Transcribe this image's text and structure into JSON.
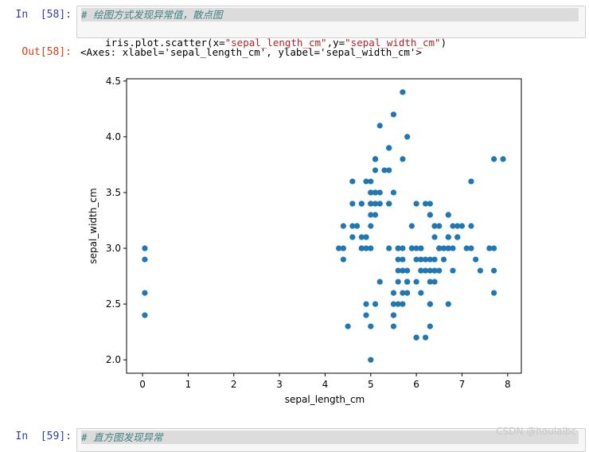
{
  "cell58": {
    "in_prompt": "In  [58]:",
    "comment": "# 绘图方式发现异常值，散点图",
    "code_prefix": "iris.plot.scatter(x=",
    "code_str1": "\"sepal_length_cm\"",
    "code_mid": ",y=",
    "code_str2": "\"sepal_width_cm\"",
    "code_suffix": ")",
    "out_prompt": "Out[58]:",
    "output_text": "<Axes: xlabel='sepal_length_cm', ylabel='sepal_width_cm'>"
  },
  "cell59": {
    "in_prompt": "In  [59]:",
    "comment": "# 直方图发现异常"
  },
  "watermark": "CSDN @houlaibc",
  "colors": {
    "marker": "#1f77b4"
  },
  "chart_data": {
    "type": "scatter",
    "title": "",
    "xlabel": "sepal_length_cm",
    "ylabel": "sepal_width_cm",
    "xlim": [
      -0.35,
      8.3
    ],
    "ylim": [
      1.88,
      4.52
    ],
    "xticks": [
      0,
      1,
      2,
      3,
      4,
      5,
      6,
      7,
      8
    ],
    "yticks": [
      2.0,
      2.5,
      3.0,
      3.5,
      4.0,
      4.5
    ],
    "xtick_labels": [
      "0",
      "1",
      "2",
      "3",
      "4",
      "5",
      "6",
      "7",
      "8"
    ],
    "ytick_labels": [
      "2.0",
      "2.5",
      "3.0",
      "3.5",
      "4.0",
      "4.5"
    ],
    "grid": false,
    "points": [
      [
        0.05,
        3.0
      ],
      [
        0.05,
        2.9
      ],
      [
        0.05,
        2.6
      ],
      [
        0.05,
        2.4
      ],
      [
        5.1,
        3.5
      ],
      [
        4.9,
        3.0
      ],
      [
        4.7,
        3.2
      ],
      [
        4.6,
        3.1
      ],
      [
        5.0,
        3.6
      ],
      [
        5.4,
        3.9
      ],
      [
        4.6,
        3.4
      ],
      [
        5.0,
        3.4
      ],
      [
        4.4,
        2.9
      ],
      [
        4.9,
        3.1
      ],
      [
        5.4,
        3.7
      ],
      [
        4.8,
        3.4
      ],
      [
        4.8,
        3.0
      ],
      [
        4.3,
        3.0
      ],
      [
        5.8,
        4.0
      ],
      [
        5.7,
        4.4
      ],
      [
        5.4,
        3.9
      ],
      [
        5.1,
        3.5
      ],
      [
        5.7,
        3.8
      ],
      [
        5.1,
        3.8
      ],
      [
        5.4,
        3.4
      ],
      [
        5.1,
        3.7
      ],
      [
        4.6,
        3.6
      ],
      [
        5.1,
        3.3
      ],
      [
        4.8,
        3.4
      ],
      [
        5.0,
        3.0
      ],
      [
        5.0,
        3.4
      ],
      [
        5.2,
        3.5
      ],
      [
        5.2,
        3.4
      ],
      [
        4.7,
        3.2
      ],
      [
        4.8,
        3.1
      ],
      [
        5.4,
        3.4
      ],
      [
        5.2,
        4.1
      ],
      [
        5.5,
        4.2
      ],
      [
        4.9,
        3.1
      ],
      [
        5.0,
        3.2
      ],
      [
        5.5,
        3.5
      ],
      [
        4.9,
        3.6
      ],
      [
        4.4,
        3.0
      ],
      [
        5.1,
        3.4
      ],
      [
        5.0,
        3.5
      ],
      [
        4.5,
        2.3
      ],
      [
        4.4,
        3.2
      ],
      [
        5.0,
        3.5
      ],
      [
        5.1,
        3.8
      ],
      [
        4.8,
        3.0
      ],
      [
        5.1,
        3.8
      ],
      [
        4.6,
        3.2
      ],
      [
        5.3,
        3.7
      ],
      [
        5.0,
        3.3
      ],
      [
        7.0,
        3.2
      ],
      [
        6.4,
        3.2
      ],
      [
        6.9,
        3.1
      ],
      [
        5.5,
        2.3
      ],
      [
        6.5,
        2.8
      ],
      [
        5.7,
        2.8
      ],
      [
        6.3,
        3.3
      ],
      [
        4.9,
        2.4
      ],
      [
        6.6,
        2.9
      ],
      [
        5.2,
        2.7
      ],
      [
        5.0,
        2.0
      ],
      [
        5.9,
        3.0
      ],
      [
        6.0,
        2.2
      ],
      [
        6.1,
        2.9
      ],
      [
        5.6,
        2.9
      ],
      [
        6.7,
        3.1
      ],
      [
        5.6,
        3.0
      ],
      [
        5.8,
        2.7
      ],
      [
        6.2,
        2.2
      ],
      [
        5.6,
        2.5
      ],
      [
        5.9,
        3.2
      ],
      [
        6.1,
        2.8
      ],
      [
        6.3,
        2.5
      ],
      [
        6.1,
        2.8
      ],
      [
        6.4,
        2.9
      ],
      [
        6.6,
        3.0
      ],
      [
        6.8,
        2.8
      ],
      [
        6.7,
        3.0
      ],
      [
        6.0,
        2.9
      ],
      [
        5.7,
        2.6
      ],
      [
        5.5,
        2.4
      ],
      [
        5.5,
        2.4
      ],
      [
        5.8,
        2.7
      ],
      [
        6.0,
        2.7
      ],
      [
        5.4,
        3.0
      ],
      [
        6.0,
        3.4
      ],
      [
        6.7,
        3.1
      ],
      [
        6.3,
        2.3
      ],
      [
        5.6,
        3.0
      ],
      [
        5.5,
        2.5
      ],
      [
        5.5,
        2.6
      ],
      [
        6.1,
        3.0
      ],
      [
        5.8,
        2.6
      ],
      [
        5.0,
        2.3
      ],
      [
        5.6,
        2.7
      ],
      [
        5.7,
        3.0
      ],
      [
        5.7,
        2.9
      ],
      [
        6.2,
        2.9
      ],
      [
        5.1,
        2.5
      ],
      [
        5.7,
        2.8
      ],
      [
        6.3,
        3.3
      ],
      [
        5.8,
        2.7
      ],
      [
        7.1,
        3.0
      ],
      [
        6.3,
        2.9
      ],
      [
        6.5,
        3.0
      ],
      [
        7.6,
        3.0
      ],
      [
        4.9,
        2.5
      ],
      [
        7.3,
        2.9
      ],
      [
        6.7,
        2.5
      ],
      [
        7.2,
        3.6
      ],
      [
        6.5,
        3.2
      ],
      [
        6.4,
        2.7
      ],
      [
        6.8,
        3.0
      ],
      [
        5.7,
        2.5
      ],
      [
        5.8,
        2.8
      ],
      [
        6.4,
        3.2
      ],
      [
        6.5,
        3.0
      ],
      [
        7.7,
        3.8
      ],
      [
        7.7,
        2.6
      ],
      [
        6.0,
        2.2
      ],
      [
        6.9,
        3.2
      ],
      [
        5.6,
        2.8
      ],
      [
        7.7,
        2.8
      ],
      [
        6.3,
        2.7
      ],
      [
        6.7,
        3.3
      ],
      [
        7.2,
        3.2
      ],
      [
        6.2,
        2.8
      ],
      [
        6.1,
        3.0
      ],
      [
        6.4,
        2.8
      ],
      [
        7.2,
        3.0
      ],
      [
        7.4,
        2.8
      ],
      [
        7.9,
        3.8
      ],
      [
        6.4,
        2.8
      ],
      [
        6.3,
        2.8
      ],
      [
        6.1,
        2.6
      ],
      [
        7.7,
        3.0
      ],
      [
        6.3,
        3.4
      ],
      [
        6.4,
        3.1
      ],
      [
        6.0,
        3.0
      ],
      [
        6.9,
        3.1
      ],
      [
        6.7,
        3.1
      ],
      [
        6.9,
        3.1
      ],
      [
        5.8,
        2.7
      ],
      [
        6.8,
        3.2
      ],
      [
        6.7,
        3.3
      ],
      [
        6.7,
        3.0
      ],
      [
        6.3,
        2.5
      ],
      [
        6.5,
        3.0
      ],
      [
        6.2,
        3.4
      ],
      [
        5.9,
        3.0
      ]
    ]
  }
}
